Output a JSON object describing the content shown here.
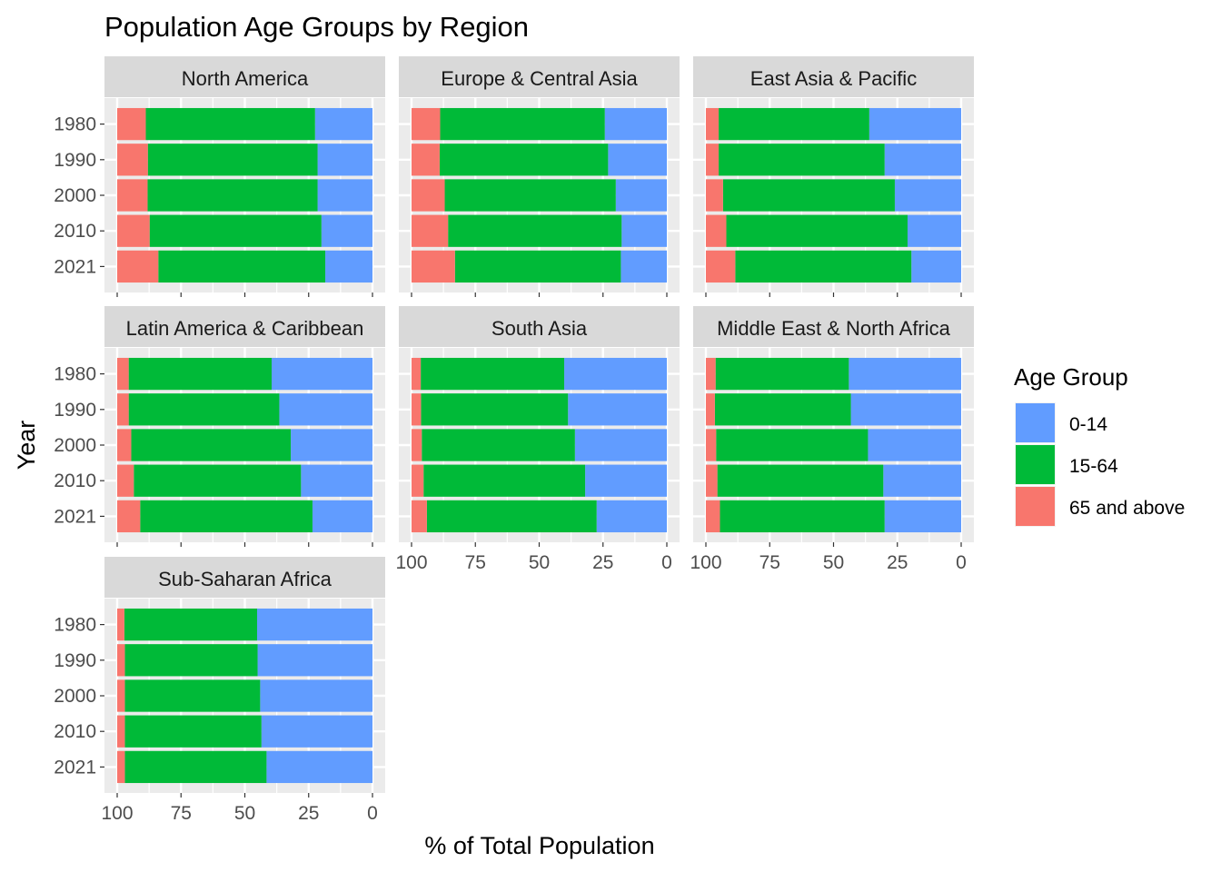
{
  "chart_data": {
    "type": "bar",
    "title": "Population Age Groups by Region",
    "xlabel": "% of Total Population",
    "ylabel": "Year",
    "x_reversed": true,
    "xlim": [
      100,
      0
    ],
    "x_ticks": [
      100,
      75,
      50,
      25,
      0
    ],
    "grid": true,
    "stacked": true,
    "categories": [
      "1980",
      "1990",
      "2000",
      "2010",
      "2021"
    ],
    "legend": {
      "title": "Age Group",
      "position": "right",
      "entries": [
        {
          "name": "0-14",
          "color": "#619CFF"
        },
        {
          "name": "15-64",
          "color": "#00BA38"
        },
        {
          "name": "65 and above",
          "color": "#F8766D"
        }
      ]
    },
    "panels": [
      {
        "region": "North America",
        "series": [
          {
            "name": "0-14",
            "values": [
              22.5,
              21.5,
              21.5,
              20.0,
              18.5
            ]
          },
          {
            "name": "15-64",
            "values": [
              66.3,
              66.5,
              66.6,
              67.3,
              65.4
            ]
          },
          {
            "name": "65 and above",
            "values": [
              11.2,
              12.0,
              11.9,
              12.7,
              16.1
            ]
          }
        ]
      },
      {
        "region": "Europe & Central Asia",
        "series": [
          {
            "name": "0-14",
            "values": [
              24.3,
              23.0,
              20.0,
              17.7,
              18.0
            ]
          },
          {
            "name": "15-64",
            "values": [
              64.5,
              66.0,
              67.0,
              68.0,
              65.0
            ]
          },
          {
            "name": "65 and above",
            "values": [
              11.2,
              11.0,
              13.0,
              14.3,
              17.0
            ]
          }
        ]
      },
      {
        "region": "East Asia & Pacific",
        "series": [
          {
            "name": "0-14",
            "values": [
              36.0,
              30.0,
              26.0,
              21.0,
              19.5
            ]
          },
          {
            "name": "15-64",
            "values": [
              59.0,
              65.0,
              67.3,
              71.0,
              69.0
            ]
          },
          {
            "name": "65 and above",
            "values": [
              5.0,
              5.0,
              6.7,
              8.0,
              11.5
            ]
          }
        ]
      },
      {
        "region": "Latin America & Caribbean",
        "series": [
          {
            "name": "0-14",
            "values": [
              39.5,
              36.5,
              32.0,
              28.0,
              23.5
            ]
          },
          {
            "name": "15-64",
            "values": [
              56.0,
              59.0,
              62.5,
              65.5,
              67.5
            ]
          },
          {
            "name": "65 and above",
            "values": [
              4.5,
              4.5,
              5.5,
              6.5,
              9.0
            ]
          }
        ]
      },
      {
        "region": "South Asia",
        "series": [
          {
            "name": "0-14",
            "values": [
              40.2,
              38.7,
              36.0,
              32.0,
              27.5
            ]
          },
          {
            "name": "15-64",
            "values": [
              56.2,
              57.6,
              60.0,
              63.3,
              66.5
            ]
          },
          {
            "name": "65 and above",
            "values": [
              3.6,
              3.7,
              4.0,
              4.7,
              6.0
            ]
          }
        ]
      },
      {
        "region": "Middle East & North Africa",
        "series": [
          {
            "name": "0-14",
            "values": [
              44.0,
              43.2,
              36.5,
              30.5,
              30.0
            ]
          },
          {
            "name": "15-64",
            "values": [
              52.2,
              53.3,
              59.5,
              65.0,
              64.5
            ]
          },
          {
            "name": "65 and above",
            "values": [
              3.8,
              3.5,
              4.0,
              4.5,
              5.5
            ]
          }
        ]
      },
      {
        "region": "Sub-Saharan Africa",
        "series": [
          {
            "name": "0-14",
            "values": [
              45.2,
              45.0,
              44.0,
              43.5,
              41.5
            ]
          },
          {
            "name": "15-64",
            "values": [
              52.0,
              52.0,
              53.0,
              53.5,
              55.5
            ]
          },
          {
            "name": "65 and above",
            "values": [
              2.8,
              3.0,
              3.0,
              3.0,
              3.0
            ]
          }
        ]
      }
    ]
  }
}
